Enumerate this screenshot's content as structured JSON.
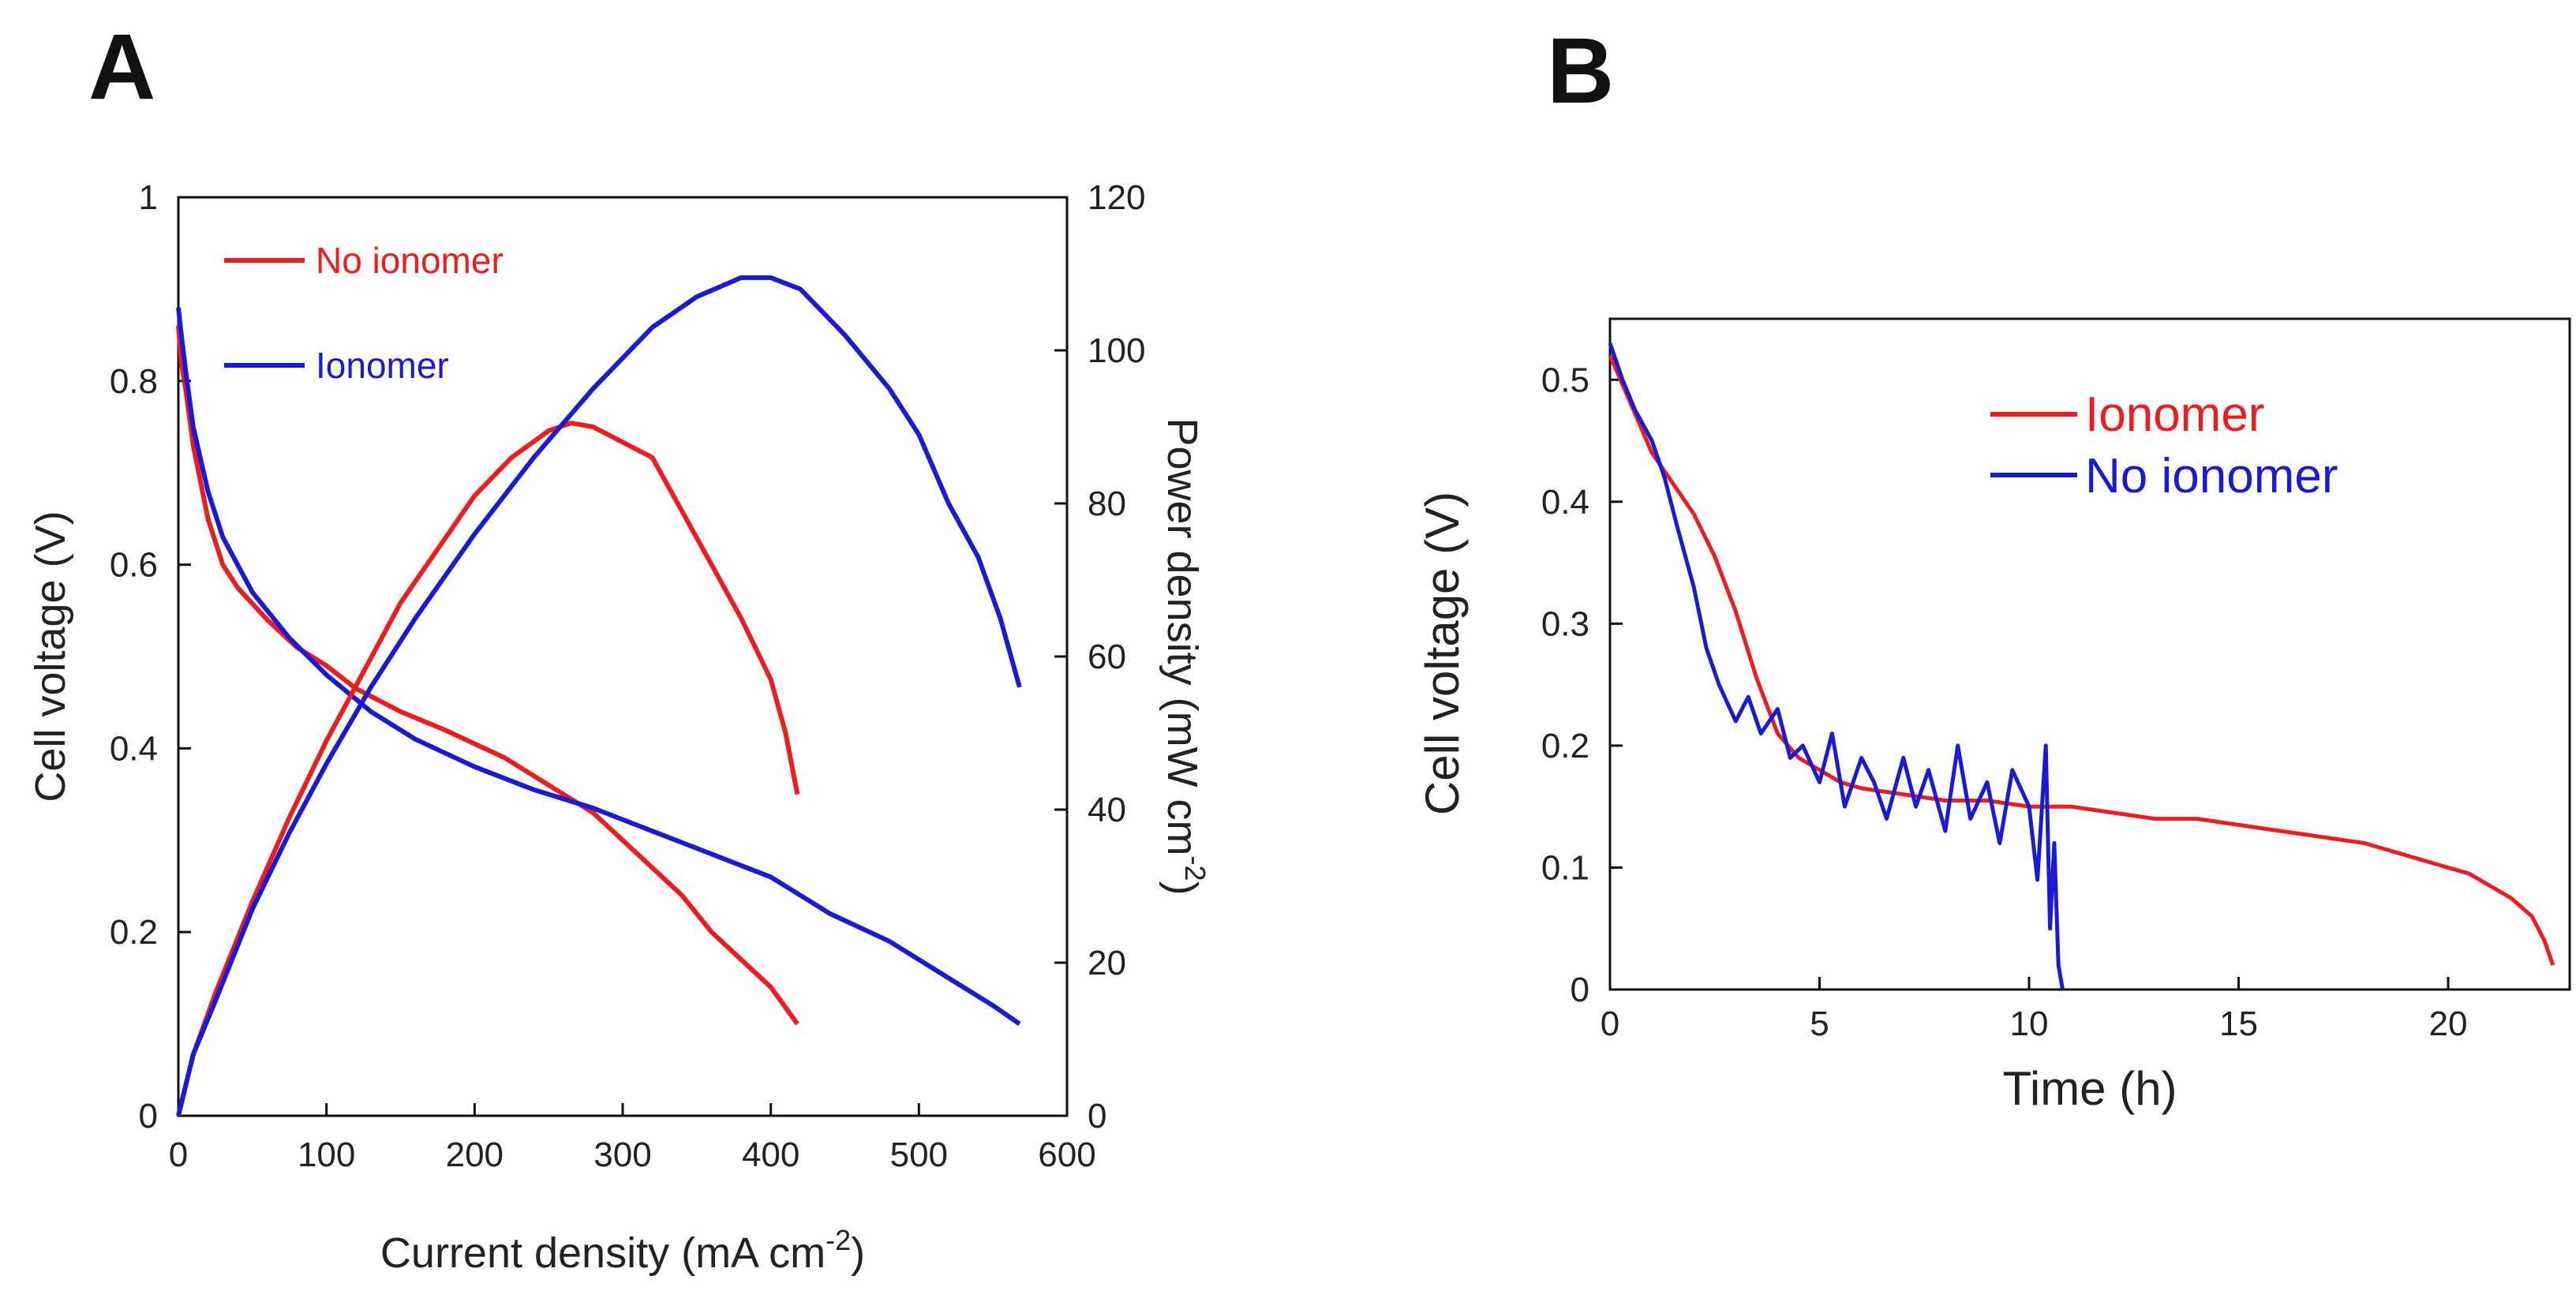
{
  "colors": {
    "red": "#ee1c1c",
    "blue": "#1a1ad6",
    "axis": "#111111"
  },
  "chart_data": [
    {
      "panel": "A",
      "type": "line",
      "xlabel": "Current density (mA cm",
      "xlabel_sup": "-2",
      "xlabel_end": ")",
      "ylabel": "Cell voltage (V)",
      "y2label": "Power density (mW cm",
      "y2label_sup": "-2",
      "y2label_end": ")",
      "xlim": [
        0,
        600
      ],
      "ylim": [
        0,
        1
      ],
      "y2lim": [
        0,
        120
      ],
      "xticks": [
        0,
        100,
        200,
        300,
        400,
        500,
        600
      ],
      "yticks": [
        0,
        0.2,
        0.4,
        0.6,
        0.8,
        1
      ],
      "yticklabels": [
        "0",
        "0.2",
        "0.4",
        "0.6",
        "0.8",
        "1"
      ],
      "y2ticks": [
        0,
        20,
        40,
        60,
        80,
        100,
        120
      ],
      "legend": [
        {
          "name": "No ionomer",
          "color": "#ee1c1c"
        },
        {
          "name": "Ionomer",
          "color": "#1a1ad6"
        }
      ],
      "series": [
        {
          "name": "No ionomer voltage",
          "axis": "left",
          "color": "#ee1c1c",
          "x": [
            0,
            2,
            5,
            10,
            15,
            20,
            30,
            40,
            60,
            80,
            100,
            120,
            150,
            180,
            200,
            220,
            250,
            280,
            300,
            320,
            340,
            360,
            380,
            400,
            418
          ],
          "y": [
            0.86,
            0.82,
            0.79,
            0.73,
            0.69,
            0.65,
            0.6,
            0.575,
            0.54,
            0.51,
            0.49,
            0.465,
            0.44,
            0.42,
            0.405,
            0.39,
            0.36,
            0.33,
            0.3,
            0.27,
            0.24,
            0.2,
            0.17,
            0.14,
            0.1
          ]
        },
        {
          "name": "Ionomer voltage",
          "axis": "left",
          "color": "#1a1ad6",
          "x": [
            0,
            2,
            5,
            10,
            20,
            30,
            50,
            75,
            100,
            130,
            160,
            200,
            240,
            280,
            320,
            360,
            400,
            440,
            480,
            520,
            550,
            568
          ],
          "y": [
            0.88,
            0.85,
            0.81,
            0.75,
            0.68,
            0.63,
            0.57,
            0.52,
            0.48,
            0.44,
            0.41,
            0.38,
            0.355,
            0.335,
            0.31,
            0.285,
            0.26,
            0.22,
            0.19,
            0.15,
            0.12,
            0.1
          ]
        },
        {
          "name": "No ionomer power",
          "axis": "right",
          "color": "#ee1c1c",
          "x": [
            0,
            10,
            25,
            50,
            75,
            100,
            125,
            150,
            175,
            200,
            225,
            250,
            265,
            280,
            300,
            320,
            340,
            360,
            380,
            400,
            410,
            418
          ],
          "y": [
            0,
            8,
            16,
            28,
            39,
            49,
            58,
            67,
            74,
            81,
            86,
            89.5,
            90.5,
            90,
            88,
            86,
            79,
            72,
            65,
            57,
            50,
            42
          ]
        },
        {
          "name": "Ionomer power",
          "axis": "right",
          "color": "#1a1ad6",
          "x": [
            0,
            10,
            25,
            50,
            75,
            100,
            130,
            160,
            200,
            240,
            280,
            320,
            350,
            380,
            400,
            420,
            450,
            480,
            500,
            520,
            540,
            555,
            568
          ],
          "y": [
            0,
            8,
            15,
            27,
            37,
            46,
            56,
            65,
            76,
            86,
            95,
            103,
            107,
            109.5,
            109.5,
            108,
            102,
            95,
            89,
            80,
            73,
            65,
            56
          ]
        }
      ]
    },
    {
      "panel": "B",
      "type": "line",
      "xlabel": "Time (h)",
      "ylabel": "Cell voltage (V)",
      "xlim": [
        0,
        22.9
      ],
      "ylim": [
        0,
        0.55
      ],
      "xticks": [
        0,
        5,
        10,
        15,
        20
      ],
      "yticks": [
        0,
        0.1,
        0.2,
        0.3,
        0.4,
        0.5
      ],
      "yticklabels": [
        "0",
        "0.1",
        "0.2",
        "0.3",
        "0.4",
        "0.5"
      ],
      "legend": [
        {
          "name": "Ionomer",
          "color": "#ee1c1c"
        },
        {
          "name": "No ionomer",
          "color": "#1a1ad6"
        }
      ],
      "series": [
        {
          "name": "Ionomer",
          "color": "#ee1c1c",
          "x": [
            0,
            0.5,
            1,
            1.5,
            2,
            2.5,
            3,
            3.5,
            4,
            4.5,
            5,
            5.5,
            6,
            7,
            8,
            9,
            10,
            11,
            12,
            13,
            14,
            15,
            16,
            17,
            18,
            19,
            20,
            20.5,
            21,
            21.5,
            22,
            22.3,
            22.5
          ],
          "y": [
            0.52,
            0.48,
            0.44,
            0.415,
            0.39,
            0.355,
            0.31,
            0.255,
            0.21,
            0.19,
            0.18,
            0.17,
            0.165,
            0.16,
            0.155,
            0.155,
            0.15,
            0.15,
            0.145,
            0.14,
            0.14,
            0.135,
            0.13,
            0.125,
            0.12,
            0.11,
            0.1,
            0.095,
            0.085,
            0.075,
            0.06,
            0.04,
            0.02
          ]
        },
        {
          "name": "No ionomer",
          "color": "#1a1ad6",
          "x": [
            0,
            0.3,
            0.6,
            1,
            1.3,
            1.6,
            2,
            2.3,
            2.6,
            3,
            3.3,
            3.6,
            4,
            4.3,
            4.6,
            5,
            5.3,
            5.6,
            6,
            6.3,
            6.6,
            7,
            7.3,
            7.6,
            8,
            8.3,
            8.6,
            9,
            9.3,
            9.6,
            10,
            10.2,
            10.4,
            10.5,
            10.6,
            10.7,
            10.8
          ],
          "y": [
            0.53,
            0.5,
            0.475,
            0.45,
            0.42,
            0.38,
            0.33,
            0.28,
            0.25,
            0.22,
            0.24,
            0.21,
            0.23,
            0.19,
            0.2,
            0.17,
            0.21,
            0.15,
            0.19,
            0.17,
            0.14,
            0.19,
            0.15,
            0.18,
            0.13,
            0.2,
            0.14,
            0.17,
            0.12,
            0.18,
            0.15,
            0.09,
            0.2,
            0.05,
            0.12,
            0.02,
            0
          ]
        }
      ]
    }
  ]
}
